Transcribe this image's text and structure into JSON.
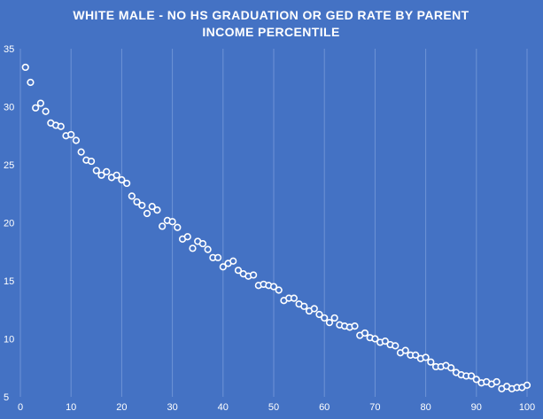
{
  "colors": {
    "background": "#4472C4",
    "gridline": "#6E93D6",
    "marker_stroke": "#FFFFFF",
    "text": "#FFFFFF"
  },
  "chart_data": {
    "type": "scatter",
    "title_lines": [
      "WHITE MALE - NO HS GRADUATION OR GED RATE BY PARENT",
      "INCOME PERCENTILE"
    ],
    "xlabel": "",
    "ylabel": "",
    "xlim": [
      0,
      100
    ],
    "ylim": [
      5,
      35
    ],
    "xticks": [
      0,
      10,
      20,
      30,
      40,
      50,
      60,
      70,
      80,
      90,
      100
    ],
    "yticks": [
      5,
      10,
      15,
      20,
      25,
      30,
      35
    ],
    "grid": "vertical",
    "legend": "none",
    "marker": "hollow-circle",
    "x": [
      1,
      2,
      3,
      4,
      5,
      6,
      7,
      8,
      9,
      10,
      11,
      12,
      13,
      14,
      15,
      16,
      17,
      18,
      19,
      20,
      21,
      22,
      23,
      24,
      25,
      26,
      27,
      28,
      29,
      30,
      31,
      32,
      33,
      34,
      35,
      36,
      37,
      38,
      39,
      40,
      41,
      42,
      43,
      44,
      45,
      46,
      47,
      48,
      49,
      50,
      51,
      52,
      53,
      54,
      55,
      56,
      57,
      58,
      59,
      60,
      61,
      62,
      63,
      64,
      65,
      66,
      67,
      68,
      69,
      70,
      71,
      72,
      73,
      74,
      75,
      76,
      77,
      78,
      79,
      80,
      81,
      82,
      83,
      84,
      85,
      86,
      87,
      88,
      89,
      90,
      91,
      92,
      93,
      94,
      95,
      96,
      97,
      98,
      99,
      100
    ],
    "y": [
      33.4,
      32.1,
      29.9,
      30.3,
      29.6,
      28.6,
      28.4,
      28.3,
      27.5,
      27.6,
      27.1,
      26.1,
      25.4,
      25.3,
      24.5,
      24.1,
      24.4,
      23.9,
      24.1,
      23.7,
      23.4,
      22.3,
      21.8,
      21.5,
      20.8,
      21.4,
      21.1,
      19.7,
      20.2,
      20.1,
      19.6,
      18.6,
      18.8,
      17.8,
      18.4,
      18.2,
      17.7,
      17.0,
      17.0,
      16.2,
      16.5,
      16.7,
      15.9,
      15.6,
      15.4,
      15.5,
      14.6,
      14.7,
      14.6,
      14.5,
      14.2,
      13.3,
      13.5,
      13.5,
      13.0,
      12.8,
      12.4,
      12.6,
      12.1,
      11.8,
      11.4,
      11.8,
      11.2,
      11.1,
      11.0,
      11.1,
      10.3,
      10.5,
      10.1,
      10.0,
      9.7,
      9.8,
      9.5,
      9.4,
      8.8,
      9.0,
      8.6,
      8.6,
      8.3,
      8.4,
      8.0,
      7.6,
      7.6,
      7.7,
      7.5,
      7.1,
      6.9,
      6.8,
      6.8,
      6.5,
      6.2,
      6.3,
      6.1,
      6.3,
      5.7,
      5.9,
      5.7,
      5.8,
      5.8,
      6.0
    ]
  }
}
